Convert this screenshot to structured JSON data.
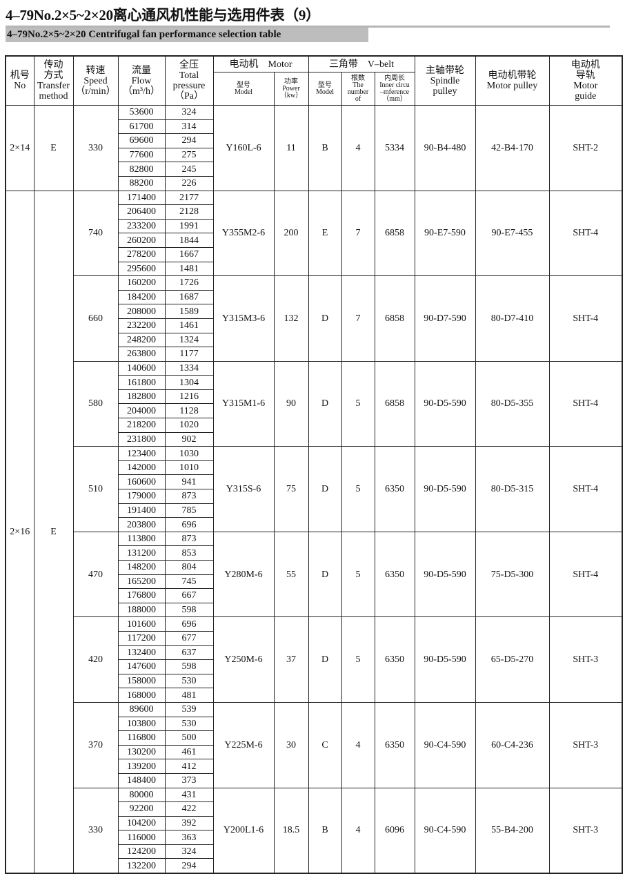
{
  "title": "4–79No.2×5~2×20离心通风机性能与选用件表（9）",
  "subtitle": "4–79No.2×5~2×20 Centrifugal fan performance selection table",
  "headers": {
    "no": [
      "机号",
      "No"
    ],
    "transfer": [
      "传动",
      "方式",
      "Transfer",
      "method"
    ],
    "speed": [
      "转速",
      "Speed",
      "（r/min）"
    ],
    "flow": [
      "流量",
      "Flow",
      "（m³/h）"
    ],
    "pressure": [
      "全压",
      "Total",
      "pressure",
      "（Pa）"
    ],
    "motor": "电动机　Motor",
    "motor_model": [
      "型号",
      "Model"
    ],
    "motor_power": [
      "功率",
      "Power",
      "（kw）"
    ],
    "vbelt": "三角带　V–belt",
    "belt_model": [
      "型号",
      "Model"
    ],
    "belt_number": [
      "根数",
      "The",
      "number",
      "of"
    ],
    "belt_inner": [
      "内周长",
      "Inner circu",
      "–mference",
      "（mm）"
    ],
    "spindle": [
      "主轴带轮",
      "Spindle",
      "pulley"
    ],
    "motor_pulley": [
      "电动机带轮",
      "Motor pulley"
    ],
    "motor_guide": [
      "电动机",
      "导轨",
      "Motor",
      "guide"
    ]
  },
  "machines": [
    {
      "no": "2×14",
      "transfer": "E",
      "groups": [
        {
          "speed": "330",
          "flow": [
            "53600",
            "61700",
            "69600",
            "77600",
            "82800",
            "88200"
          ],
          "pressure": [
            "324",
            "314",
            "294",
            "275",
            "245",
            "226"
          ],
          "motor_model": "Y160L-6",
          "power": "11",
          "belt_model": "B",
          "belt_number": "4",
          "belt_inner": "5334",
          "spindle": "90-B4-480",
          "motor_pulley": "42-B4-170",
          "guide": "SHT-2"
        }
      ]
    },
    {
      "no": "2×16",
      "transfer": "E",
      "groups": [
        {
          "speed": "740",
          "flow": [
            "171400",
            "206400",
            "233200",
            "260200",
            "278200",
            "295600"
          ],
          "pressure": [
            "2177",
            "2128",
            "1991",
            "1844",
            "1667",
            "1481"
          ],
          "motor_model": "Y355M2-6",
          "power": "200",
          "belt_model": "E",
          "belt_number": "7",
          "belt_inner": "6858",
          "spindle": "90-E7-590",
          "motor_pulley": "90-E7-455",
          "guide": "SHT-4"
        },
        {
          "speed": "660",
          "flow": [
            "160200",
            "184200",
            "208000",
            "232200",
            "248200",
            "263800"
          ],
          "pressure": [
            "1726",
            "1687",
            "1589",
            "1461",
            "1324",
            "1177"
          ],
          "motor_model": "Y315M3-6",
          "power": "132",
          "belt_model": "D",
          "belt_number": "7",
          "belt_inner": "6858",
          "spindle": "90-D7-590",
          "motor_pulley": "80-D7-410",
          "guide": "SHT-4"
        },
        {
          "speed": "580",
          "flow": [
            "140600",
            "161800",
            "182800",
            "204000",
            "218200",
            "231800"
          ],
          "pressure": [
            "1334",
            "1304",
            "1216",
            "1128",
            "1020",
            "902"
          ],
          "motor_model": "Y315M1-6",
          "power": "90",
          "belt_model": "D",
          "belt_number": "5",
          "belt_inner": "6858",
          "spindle": "90-D5-590",
          "motor_pulley": "80-D5-355",
          "guide": "SHT-4"
        },
        {
          "speed": "510",
          "flow": [
            "123400",
            "142000",
            "160600",
            "179000",
            "191400",
            "203800"
          ],
          "pressure": [
            "1030",
            "1010",
            "941",
            "873",
            "785",
            "696"
          ],
          "motor_model": "Y315S-6",
          "power": "75",
          "belt_model": "D",
          "belt_number": "5",
          "belt_inner": "6350",
          "spindle": "90-D5-590",
          "motor_pulley": "80-D5-315",
          "guide": "SHT-4"
        },
        {
          "speed": "470",
          "flow": [
            "113800",
            "131200",
            "148200",
            "165200",
            "176800",
            "188000"
          ],
          "pressure": [
            "873",
            "853",
            "804",
            "745",
            "667",
            "598"
          ],
          "motor_model": "Y280M-6",
          "power": "55",
          "belt_model": "D",
          "belt_number": "5",
          "belt_inner": "6350",
          "spindle": "90-D5-590",
          "motor_pulley": "75-D5-300",
          "guide": "SHT-4"
        },
        {
          "speed": "420",
          "flow": [
            "101600",
            "117200",
            "132400",
            "147600",
            "158000",
            "168000"
          ],
          "pressure": [
            "696",
            "677",
            "637",
            "598",
            "530",
            "481"
          ],
          "motor_model": "Y250M-6",
          "power": "37",
          "belt_model": "D",
          "belt_number": "5",
          "belt_inner": "6350",
          "spindle": "90-D5-590",
          "motor_pulley": "65-D5-270",
          "guide": "SHT-3"
        },
        {
          "speed": "370",
          "flow": [
            "89600",
            "103800",
            "116800",
            "130200",
            "139200",
            "148400"
          ],
          "pressure": [
            "539",
            "530",
            "500",
            "461",
            "412",
            "373"
          ],
          "motor_model": "Y225M-6",
          "power": "30",
          "belt_model": "C",
          "belt_number": "4",
          "belt_inner": "6350",
          "spindle": "90-C4-590",
          "motor_pulley": "60-C4-236",
          "guide": "SHT-3"
        },
        {
          "speed": "330",
          "flow": [
            "80000",
            "92200",
            "104200",
            "116000",
            "124200",
            "132200"
          ],
          "pressure": [
            "431",
            "422",
            "392",
            "363",
            "324",
            "294"
          ],
          "motor_model": "Y200L1-6",
          "power": "18.5",
          "belt_model": "B",
          "belt_number": "4",
          "belt_inner": "6096",
          "spindle": "90-C4-590",
          "motor_pulley": "55-B4-200",
          "guide": "SHT-3"
        }
      ]
    }
  ]
}
